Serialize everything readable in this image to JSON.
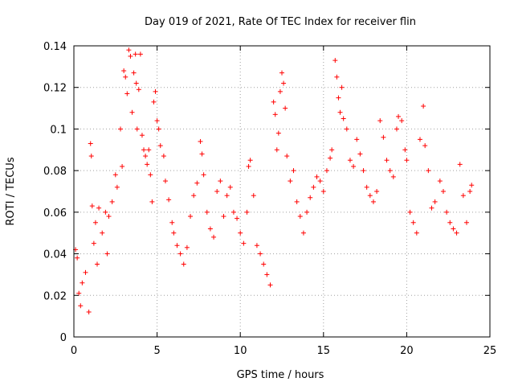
{
  "chart_data": {
    "type": "scatter",
    "title": "Day 019 of 2021, Rate Of TEC Index for receiver flin",
    "xlabel": "GPS time / hours",
    "ylabel": "ROTI / TECUs",
    "xlim": [
      0,
      25
    ],
    "ylim": [
      0,
      0.14
    ],
    "x_ticks": [
      0,
      5,
      10,
      15,
      20,
      25
    ],
    "x_tick_labels": [
      "0",
      "5",
      "10",
      "15",
      "20",
      "25"
    ],
    "y_ticks": [
      0,
      0.02,
      0.04,
      0.06,
      0.08,
      0.1,
      0.12,
      0.14
    ],
    "y_tick_labels": [
      "0",
      "0.02",
      "0.04",
      "0.06",
      "0.08",
      "0.1",
      "0.12",
      "0.14"
    ],
    "grid": true,
    "marker": "+",
    "marker_color": "#ff0000",
    "series": [
      {
        "points": [
          [
            0.1,
            0.042
          ],
          [
            0.2,
            0.038
          ],
          [
            0.3,
            0.021
          ],
          [
            0.4,
            0.015
          ],
          [
            0.5,
            0.026
          ],
          [
            0.7,
            0.031
          ],
          [
            0.9,
            0.012
          ],
          [
            1.0,
            0.093
          ],
          [
            1.05,
            0.087
          ],
          [
            1.1,
            0.063
          ],
          [
            1.2,
            0.045
          ],
          [
            1.3,
            0.055
          ],
          [
            1.4,
            0.035
          ],
          [
            1.5,
            0.062
          ],
          [
            1.7,
            0.05
          ],
          [
            1.9,
            0.06
          ],
          [
            2.0,
            0.04
          ],
          [
            2.1,
            0.058
          ],
          [
            2.3,
            0.065
          ],
          [
            2.5,
            0.078
          ],
          [
            2.6,
            0.072
          ],
          [
            2.8,
            0.1
          ],
          [
            2.9,
            0.082
          ],
          [
            3.0,
            0.128
          ],
          [
            3.1,
            0.125
          ],
          [
            3.2,
            0.117
          ],
          [
            3.3,
            0.138
          ],
          [
            3.4,
            0.135
          ],
          [
            3.5,
            0.108
          ],
          [
            3.6,
            0.127
          ],
          [
            3.7,
            0.136
          ],
          [
            3.75,
            0.122
          ],
          [
            3.8,
            0.1
          ],
          [
            3.9,
            0.119
          ],
          [
            4.0,
            0.136
          ],
          [
            4.1,
            0.097
          ],
          [
            4.2,
            0.09
          ],
          [
            4.3,
            0.087
          ],
          [
            4.4,
            0.083
          ],
          [
            4.5,
            0.09
          ],
          [
            4.6,
            0.078
          ],
          [
            4.7,
            0.065
          ],
          [
            4.8,
            0.113
          ],
          [
            4.9,
            0.118
          ],
          [
            5.0,
            0.104
          ],
          [
            5.1,
            0.1
          ],
          [
            5.2,
            0.092
          ],
          [
            5.4,
            0.087
          ],
          [
            5.5,
            0.075
          ],
          [
            5.7,
            0.066
          ],
          [
            5.9,
            0.055
          ],
          [
            6.0,
            0.05
          ],
          [
            6.2,
            0.044
          ],
          [
            6.4,
            0.04
          ],
          [
            6.6,
            0.035
          ],
          [
            6.8,
            0.043
          ],
          [
            7.0,
            0.058
          ],
          [
            7.2,
            0.068
          ],
          [
            7.4,
            0.074
          ],
          [
            7.6,
            0.094
          ],
          [
            7.7,
            0.088
          ],
          [
            7.8,
            0.078
          ],
          [
            8.0,
            0.06
          ],
          [
            8.2,
            0.052
          ],
          [
            8.4,
            0.048
          ],
          [
            8.6,
            0.07
          ],
          [
            8.8,
            0.075
          ],
          [
            9.0,
            0.058
          ],
          [
            9.2,
            0.068
          ],
          [
            9.4,
            0.072
          ],
          [
            9.6,
            0.06
          ],
          [
            9.8,
            0.057
          ],
          [
            10.0,
            0.05
          ],
          [
            10.2,
            0.045
          ],
          [
            10.4,
            0.06
          ],
          [
            10.5,
            0.082
          ],
          [
            10.6,
            0.085
          ],
          [
            10.8,
            0.068
          ],
          [
            11.0,
            0.044
          ],
          [
            11.2,
            0.04
          ],
          [
            11.4,
            0.035
          ],
          [
            11.6,
            0.03
          ],
          [
            11.8,
            0.025
          ],
          [
            12.0,
            0.113
          ],
          [
            12.1,
            0.107
          ],
          [
            12.2,
            0.09
          ],
          [
            12.3,
            0.098
          ],
          [
            12.4,
            0.118
          ],
          [
            12.5,
            0.127
          ],
          [
            12.6,
            0.122
          ],
          [
            12.7,
            0.11
          ],
          [
            12.8,
            0.087
          ],
          [
            13.0,
            0.075
          ],
          [
            13.2,
            0.08
          ],
          [
            13.4,
            0.065
          ],
          [
            13.6,
            0.058
          ],
          [
            13.8,
            0.05
          ],
          [
            14.0,
            0.06
          ],
          [
            14.2,
            0.067
          ],
          [
            14.4,
            0.072
          ],
          [
            14.6,
            0.077
          ],
          [
            14.8,
            0.075
          ],
          [
            15.0,
            0.07
          ],
          [
            15.2,
            0.08
          ],
          [
            15.4,
            0.086
          ],
          [
            15.5,
            0.09
          ],
          [
            15.7,
            0.133
          ],
          [
            15.8,
            0.125
          ],
          [
            15.9,
            0.115
          ],
          [
            16.0,
            0.108
          ],
          [
            16.1,
            0.12
          ],
          [
            16.2,
            0.105
          ],
          [
            16.4,
            0.1
          ],
          [
            16.6,
            0.085
          ],
          [
            16.8,
            0.082
          ],
          [
            17.0,
            0.095
          ],
          [
            17.2,
            0.088
          ],
          [
            17.4,
            0.08
          ],
          [
            17.6,
            0.072
          ],
          [
            17.8,
            0.068
          ],
          [
            18.0,
            0.065
          ],
          [
            18.2,
            0.07
          ],
          [
            18.4,
            0.104
          ],
          [
            18.6,
            0.096
          ],
          [
            18.8,
            0.085
          ],
          [
            19.0,
            0.08
          ],
          [
            19.2,
            0.077
          ],
          [
            19.4,
            0.1
          ],
          [
            19.5,
            0.106
          ],
          [
            19.7,
            0.104
          ],
          [
            19.9,
            0.09
          ],
          [
            20.0,
            0.085
          ],
          [
            20.2,
            0.06
          ],
          [
            20.4,
            0.055
          ],
          [
            20.6,
            0.05
          ],
          [
            20.8,
            0.095
          ],
          [
            21.0,
            0.111
          ],
          [
            21.1,
            0.092
          ],
          [
            21.3,
            0.08
          ],
          [
            21.5,
            0.062
          ],
          [
            21.7,
            0.065
          ],
          [
            22.0,
            0.075
          ],
          [
            22.2,
            0.07
          ],
          [
            22.4,
            0.06
          ],
          [
            22.6,
            0.055
          ],
          [
            22.8,
            0.052
          ],
          [
            23.0,
            0.05
          ],
          [
            23.2,
            0.083
          ],
          [
            23.4,
            0.068
          ],
          [
            23.6,
            0.055
          ],
          [
            23.8,
            0.07
          ],
          [
            23.9,
            0.073
          ]
        ]
      }
    ]
  }
}
